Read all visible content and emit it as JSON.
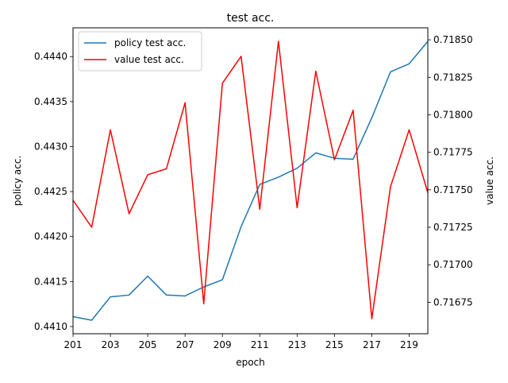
{
  "chart_data": {
    "type": "line",
    "title": "test acc.",
    "xlabel": "epoch",
    "ylabel_left": "policy acc.",
    "ylabel_right": "value acc.",
    "xlim": [
      201,
      220
    ],
    "ylim_left": [
      0.44092,
      0.44432
    ],
    "ylim_right": [
      0.71654,
      0.71858
    ],
    "x_ticks": [
      "201",
      "203",
      "205",
      "207",
      "209",
      "211",
      "213",
      "215",
      "217",
      "219"
    ],
    "y_ticks_left": [
      "0.4410",
      "0.4415",
      "0.4420",
      "0.4425",
      "0.4430",
      "0.4435",
      "0.4440"
    ],
    "y_ticks_right": [
      "0.71675",
      "0.71700",
      "0.71725",
      "0.71750",
      "0.71775",
      "0.71800",
      "0.71825",
      "0.71850"
    ],
    "grid": false,
    "legend_position": "top-left",
    "x": [
      201,
      202,
      203,
      204,
      205,
      206,
      207,
      208,
      209,
      210,
      211,
      212,
      213,
      214,
      215,
      216,
      217,
      218,
      219,
      220
    ],
    "series": [
      {
        "name": "policy test acc.",
        "axis": "left",
        "color": "#1f77b4",
        "values": [
          0.44111,
          0.44107,
          0.44133,
          0.44135,
          0.44156,
          0.44135,
          0.44134,
          0.44144,
          0.44152,
          0.44211,
          0.44258,
          0.44266,
          0.44276,
          0.44293,
          0.44287,
          0.44286,
          0.44332,
          0.44383,
          0.44392,
          0.44417
        ]
      },
      {
        "name": "value test acc.",
        "axis": "right",
        "color": "#ff0000",
        "values": [
          0.71743,
          0.71725,
          0.7179,
          0.71734,
          0.7176,
          0.71764,
          0.71808,
          0.71674,
          0.71821,
          0.71839,
          0.71737,
          0.71849,
          0.71738,
          0.71829,
          0.7177,
          0.71803,
          0.71664,
          0.71752,
          0.7179,
          0.71748
        ]
      }
    ]
  }
}
